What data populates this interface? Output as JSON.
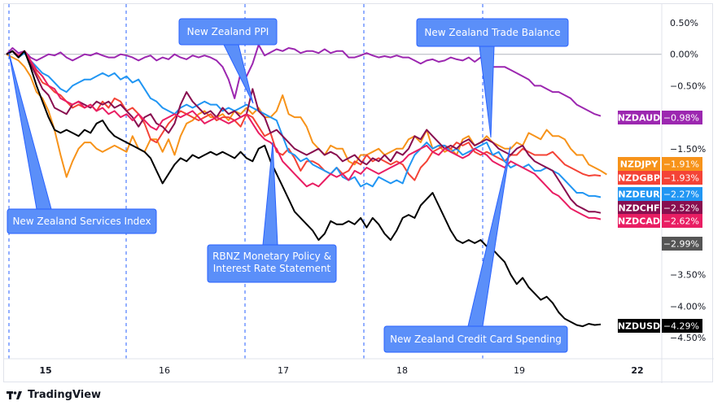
{
  "chart_data": {
    "type": "line",
    "x_ticks": [
      "15",
      "16",
      "17",
      "18",
      "19",
      "22"
    ],
    "y_ticks": [
      "0.50%",
      "0.00%",
      "−0.50%",
      "−1.50%",
      "−3.50%",
      "−4.00%",
      "−4.50%"
    ],
    "y_tick_values": [
      0.5,
      0.0,
      -0.5,
      -1.5,
      -3.5,
      -4.0,
      -4.5
    ],
    "ylim": [
      -4.7,
      0.7
    ],
    "xlim": [
      0,
      100
    ],
    "grid": false,
    "zero_line": true,
    "series": [
      {
        "name": "NZDAUD",
        "color": "#9c27b0",
        "last": "−0.98%",
        "last_value": -0.98,
        "values": [
          0,
          0.1,
          0.02,
          0.05,
          -0.05,
          -0.1,
          -0.05,
          0,
          -0.02,
          0.03,
          -0.05,
          -0.1,
          -0.05,
          0,
          -0.02,
          0.02,
          -0.02,
          -0.05,
          -0.05,
          0,
          -0.02,
          -0.05,
          -0.1,
          -0.05,
          -0.02,
          -0.1,
          -0.05,
          -0.08,
          0,
          -0.05,
          -0.08,
          -0.02,
          -0.05,
          -0.02,
          -0.05,
          -0.1,
          -0.2,
          -0.4,
          -0.7,
          -0.3,
          -0.35,
          -0.15,
          0.15,
          -0.02,
          0.03,
          0.08,
          0.05,
          0.1,
          0.08,
          0.02,
          0.05,
          0.05,
          0.02,
          0.08,
          0.02,
          0.05,
          0.05,
          -0.05,
          -0.05,
          -0.02,
          0.02,
          -0.02,
          -0.05,
          -0.03,
          -0.05,
          -0.02,
          -0.05,
          -0.05,
          -0.1,
          -0.15,
          -0.1,
          -0.08,
          -0.12,
          -0.1,
          -0.05,
          -0.08,
          -0.1,
          -0.05,
          -0.12,
          -0.05,
          -0.1,
          -0.2,
          -0.2,
          -0.2,
          -0.25,
          -0.3,
          -0.35,
          -0.4,
          -0.5,
          -0.5,
          -0.55,
          -0.6,
          -0.6,
          -0.65,
          -0.7,
          -0.8,
          -0.85,
          -0.9,
          -0.95,
          -0.98
        ]
      },
      {
        "name": "NZDJPY",
        "color": "#f7931a",
        "last": "−1.91%",
        "last_value": -1.91,
        "values": [
          0,
          -0.05,
          -0.1,
          -0.2,
          -0.35,
          -0.6,
          -0.7,
          -0.9,
          -1.2,
          -1.6,
          -1.95,
          -1.7,
          -1.5,
          -1.4,
          -1.4,
          -1.5,
          -1.55,
          -1.5,
          -1.45,
          -1.5,
          -1.55,
          -1.3,
          -1.5,
          -1.55,
          -1.35,
          -1.35,
          -1.55,
          -1.35,
          -1.6,
          -1.3,
          -1.1,
          -1.05,
          -0.95,
          -0.9,
          -1.0,
          -1.0,
          -0.95,
          -1.05,
          -0.9,
          -0.95,
          -0.85,
          -0.95,
          -0.85,
          -1.0,
          -1.0,
          -0.9,
          -0.65,
          -0.95,
          -1.0,
          -1.0,
          -1.15,
          -1.4,
          -1.5,
          -1.6,
          -1.45,
          -1.5,
          -1.5,
          -1.7,
          -1.75,
          -1.6,
          -1.6,
          -1.55,
          -1.5,
          -1.6,
          -1.55,
          -1.5,
          -1.5,
          -1.35,
          -1.3,
          -1.4,
          -1.2,
          -1.5,
          -1.45,
          -1.55,
          -1.5,
          -1.6,
          -1.35,
          -1.3,
          -1.45,
          -1.4,
          -1.3,
          -1.4,
          -1.45,
          -1.5,
          -1.5,
          -1.4,
          -1.45,
          -1.25,
          -1.3,
          -1.35,
          -1.2,
          -1.3,
          -1.3,
          -1.35,
          -1.5,
          -1.6,
          -1.6,
          -1.75,
          -1.8,
          -1.85,
          -1.91
        ]
      },
      {
        "name": "NZDGBP",
        "color": "#f44336",
        "last": "−1.93%",
        "last_value": -1.93,
        "values": [
          0,
          0.05,
          -0.05,
          0.05,
          -0.1,
          -0.3,
          -0.45,
          -0.5,
          -0.6,
          -0.65,
          -0.75,
          -0.85,
          -0.8,
          -0.85,
          -0.8,
          -0.9,
          -0.75,
          -0.85,
          -0.7,
          -0.75,
          -0.9,
          -0.85,
          -0.95,
          -1.1,
          -1.35,
          -1.4,
          -1.25,
          -1.1,
          -1.0,
          -0.9,
          -0.95,
          -1.0,
          -1.05,
          -1.0,
          -0.95,
          -1.05,
          -1.0,
          -1.0,
          -1.05,
          -1.15,
          -0.95,
          -1.0,
          -1.15,
          -1.3,
          -1.25,
          -1.55,
          -1.6,
          -1.5,
          -1.65,
          -1.85,
          -1.7,
          -1.7,
          -1.75,
          -1.85,
          -1.9,
          -1.8,
          -1.9,
          -1.85,
          -1.7,
          -1.75,
          -1.6,
          -1.7,
          -1.65,
          -1.7,
          -1.75,
          -1.7,
          -1.75,
          -1.9,
          -2.0,
          -1.8,
          -1.7,
          -1.55,
          -1.5,
          -1.45,
          -1.5,
          -1.4,
          -1.45,
          -1.4,
          -1.55,
          -1.6,
          -1.55,
          -1.6,
          -1.65,
          -1.7,
          -1.6,
          -1.6,
          -1.5,
          -1.55,
          -1.6,
          -1.6,
          -1.6,
          -1.55,
          -1.65,
          -1.75,
          -1.8,
          -1.85,
          -1.9,
          -1.93,
          -1.92,
          -1.93
        ]
      },
      {
        "name": "NZDEUR",
        "color": "#2196f3",
        "last": "−2.27%",
        "last_value": -2.27,
        "values": [
          0,
          0.05,
          -0.05,
          0.02,
          -0.1,
          -0.2,
          -0.3,
          -0.35,
          -0.45,
          -0.55,
          -0.6,
          -0.5,
          -0.45,
          -0.4,
          -0.4,
          -0.35,
          -0.3,
          -0.35,
          -0.3,
          -0.4,
          -0.35,
          -0.45,
          -0.4,
          -0.55,
          -0.7,
          -0.75,
          -0.85,
          -0.9,
          -0.95,
          -0.85,
          -0.8,
          -0.85,
          -0.8,
          -0.75,
          -0.8,
          -0.8,
          -0.9,
          -0.85,
          -0.9,
          -0.85,
          -0.8,
          -0.85,
          -0.9,
          -0.95,
          -1.0,
          -1.05,
          -1.3,
          -1.55,
          -1.6,
          -1.7,
          -1.65,
          -1.75,
          -1.8,
          -1.85,
          -1.9,
          -1.8,
          -1.95,
          -2.0,
          -1.95,
          -2.1,
          -2.05,
          -2.1,
          -1.95,
          -2.0,
          -2.05,
          -2.0,
          -2.05,
          -1.8,
          -1.6,
          -1.5,
          -1.4,
          -1.5,
          -1.45,
          -1.45,
          -1.55,
          -1.5,
          -1.6,
          -1.55,
          -1.5,
          -1.45,
          -1.4,
          -1.6,
          -1.55,
          -1.7,
          -1.8,
          -1.75,
          -1.8,
          -1.75,
          -1.85,
          -1.85,
          -1.8,
          -1.85,
          -1.9,
          -2.0,
          -2.1,
          -2.2,
          -2.2,
          -2.25,
          -2.25,
          -2.27
        ]
      },
      {
        "name": "NZDCHF",
        "color": "#880e4f",
        "last": "−2.52%",
        "last_value": -2.52,
        "values": [
          0,
          0.05,
          -0.05,
          0.05,
          -0.15,
          -0.35,
          -0.55,
          -0.65,
          -0.85,
          -0.9,
          -0.95,
          -0.8,
          -0.75,
          -0.8,
          -0.85,
          -0.75,
          -0.8,
          -0.75,
          -0.85,
          -0.8,
          -0.9,
          -1.0,
          -1.15,
          -1.0,
          -0.95,
          -1.1,
          -1.15,
          -1.25,
          -1.1,
          -0.8,
          -0.6,
          -0.75,
          -0.85,
          -0.95,
          -0.9,
          -1.0,
          -0.85,
          -0.95,
          -0.9,
          -1.0,
          -0.95,
          -0.55,
          -0.9,
          -1.0,
          -1.25,
          -1.2,
          -1.3,
          -1.4,
          -1.5,
          -1.55,
          -1.6,
          -1.55,
          -1.5,
          -1.6,
          -1.55,
          -1.6,
          -1.7,
          -1.65,
          -1.6,
          -1.7,
          -1.75,
          -1.65,
          -1.7,
          -1.6,
          -1.7,
          -1.55,
          -1.6,
          -1.5,
          -1.3,
          -1.35,
          -1.2,
          -1.3,
          -1.4,
          -1.5,
          -1.45,
          -1.5,
          -1.4,
          -1.35,
          -1.45,
          -1.4,
          -1.35,
          -1.4,
          -1.5,
          -1.55,
          -1.6,
          -1.5,
          -1.45,
          -1.6,
          -1.7,
          -1.75,
          -1.8,
          -1.85,
          -2.0,
          -2.15,
          -2.3,
          -2.4,
          -2.45,
          -2.5,
          -2.5,
          -2.52
        ]
      },
      {
        "name": "NZDCAD",
        "color": "#e91e63",
        "last": "−2.62%",
        "last_value": -2.62,
        "values": [
          0,
          0.05,
          -0.02,
          0.05,
          -0.1,
          -0.25,
          -0.35,
          -0.5,
          -0.55,
          -0.7,
          -0.75,
          -0.8,
          -0.75,
          -0.85,
          -0.8,
          -0.9,
          -0.85,
          -0.95,
          -0.9,
          -1.0,
          -0.95,
          -1.05,
          -0.95,
          -1.05,
          -1.15,
          -1.2,
          -1.05,
          -1.0,
          -0.95,
          -1.0,
          -0.95,
          -0.9,
          -1.0,
          -1.1,
          -1.05,
          -1.0,
          -1.05,
          -1.1,
          -1.05,
          -1.0,
          -0.95,
          -1.1,
          -1.25,
          -1.35,
          -1.4,
          -1.5,
          -1.7,
          -1.8,
          -1.9,
          -2.0,
          -2.1,
          -2.05,
          -2.1,
          -2.0,
          -1.9,
          -1.95,
          -1.9,
          -2.0,
          -1.85,
          -1.9,
          -1.8,
          -1.85,
          -1.9,
          -1.85,
          -1.8,
          -1.75,
          -1.7,
          -1.6,
          -1.55,
          -1.5,
          -1.45,
          -1.55,
          -1.6,
          -1.5,
          -1.55,
          -1.6,
          -1.65,
          -1.6,
          -1.5,
          -1.55,
          -1.6,
          -1.7,
          -1.75,
          -1.8,
          -1.7,
          -1.75,
          -1.8,
          -1.85,
          -1.9,
          -2.0,
          -2.1,
          -2.2,
          -2.25,
          -2.35,
          -2.45,
          -2.5,
          -2.55,
          -2.6,
          -2.6,
          -2.62
        ]
      },
      {
        "name": "NZDUSD",
        "color": "#000000",
        "last": "−4.29%",
        "last_value": -4.29,
        "values": [
          0,
          0.05,
          -0.05,
          0.05,
          -0.2,
          -0.5,
          -0.75,
          -1.0,
          -1.2,
          -1.25,
          -1.2,
          -1.25,
          -1.3,
          -1.2,
          -1.25,
          -1.1,
          -1.05,
          -1.2,
          -1.3,
          -1.35,
          -1.4,
          -1.45,
          -1.5,
          -1.55,
          -1.65,
          -1.85,
          -2.05,
          -1.9,
          -1.75,
          -1.65,
          -1.7,
          -1.6,
          -1.65,
          -1.6,
          -1.55,
          -1.6,
          -1.55,
          -1.6,
          -1.65,
          -1.55,
          -1.65,
          -1.7,
          -1.5,
          -1.45,
          -1.7,
          -1.9,
          -2.1,
          -2.3,
          -2.5,
          -2.6,
          -2.7,
          -2.8,
          -2.95,
          -2.85,
          -2.65,
          -2.7,
          -2.7,
          -2.65,
          -2.7,
          -2.6,
          -2.75,
          -2.6,
          -2.7,
          -2.85,
          -2.95,
          -2.8,
          -2.6,
          -2.55,
          -2.6,
          -2.4,
          -2.3,
          -2.2,
          -2.4,
          -2.6,
          -2.8,
          -2.95,
          -3.0,
          -2.95,
          -3.0,
          -2.95,
          -3.05,
          -3.1,
          -3.2,
          -3.3,
          -3.5,
          -3.65,
          -3.55,
          -3.7,
          -3.8,
          -3.9,
          -3.85,
          -3.95,
          -4.1,
          -4.2,
          -4.25,
          -4.3,
          -4.32,
          -4.28,
          -4.3,
          -4.29
        ]
      }
    ],
    "session_markers": [
      0,
      20,
      40,
      60,
      80
    ],
    "annotations": [
      {
        "label": "New Zealand Services Index"
      },
      {
        "label": "New Zealand PPI"
      },
      {
        "label": "RBNZ Monetary Policy &",
        "label2": "Interest Rate Statement"
      },
      {
        "label": "New Zealand Trade Balance"
      },
      {
        "label": "New Zealand Credit Card Spending"
      }
    ],
    "extra_price_tag": {
      "label": "−2.99%",
      "value": -2.99,
      "color": "#555555"
    }
  },
  "brand": {
    "name": "TradingView"
  }
}
